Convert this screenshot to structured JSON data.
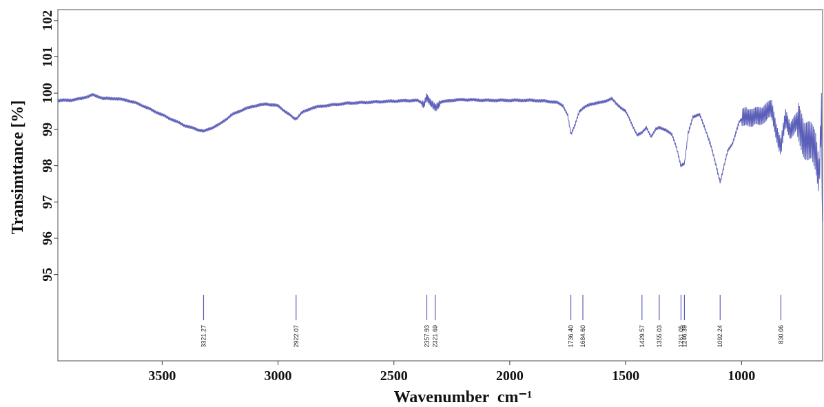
{
  "chart_data": {
    "type": "line",
    "title": "",
    "xlabel": "Wavenumber  cm⁻¹",
    "ylabel": "Transimttance [%]",
    "xlim": [
      3950,
      650
    ],
    "x_reversed": true,
    "ylim": [
      94.5,
      102.3
    ],
    "x_ticks": [
      3500,
      3000,
      2500,
      2000,
      1500,
      1000
    ],
    "y_ticks": [
      95,
      96,
      97,
      98,
      99,
      100,
      101,
      102
    ],
    "grid": false,
    "legend": "none",
    "series_color": "#5b5fb8",
    "series": [
      {
        "x": [
          3950,
          3900,
          3850,
          3800,
          3750,
          3700,
          3650,
          3600,
          3550,
          3500,
          3450,
          3400,
          3350,
          3320,
          3300,
          3250,
          3200,
          3150,
          3100,
          3050,
          3000,
          2960,
          2930,
          2920,
          2900,
          2850,
          2800,
          2700,
          2600,
          2500,
          2400,
          2370,
          2360,
          2340,
          2320,
          2300,
          2250,
          2200,
          2100,
          2000,
          1900,
          1850,
          1800,
          1770,
          1750,
          1736,
          1720,
          1700,
          1680,
          1650,
          1600,
          1560,
          1540,
          1500,
          1470,
          1450,
          1430,
          1410,
          1390,
          1370,
          1355,
          1330,
          1300,
          1280,
          1262,
          1246,
          1230,
          1210,
          1180,
          1150,
          1130,
          1110,
          1092,
          1075,
          1060,
          1040,
          1010,
          980,
          950,
          900,
          870,
          840,
          830,
          810,
          790,
          760,
          730,
          700,
          680,
          665,
          655,
          650
        ],
        "y": [
          99.8,
          99.8,
          99.85,
          99.95,
          99.85,
          99.85,
          99.8,
          99.7,
          99.55,
          99.4,
          99.25,
          99.1,
          99.0,
          98.95,
          99.0,
          99.15,
          99.4,
          99.55,
          99.65,
          99.7,
          99.65,
          99.45,
          99.3,
          99.3,
          99.45,
          99.6,
          99.65,
          99.72,
          99.75,
          99.78,
          99.8,
          99.7,
          99.9,
          99.7,
          99.6,
          99.75,
          99.8,
          99.82,
          99.8,
          99.8,
          99.8,
          99.78,
          99.75,
          99.65,
          99.4,
          98.85,
          99.1,
          99.5,
          99.6,
          99.7,
          99.75,
          99.85,
          99.7,
          99.5,
          99.1,
          98.85,
          98.9,
          99.05,
          98.8,
          99.0,
          99.05,
          99.0,
          98.85,
          98.5,
          98.0,
          98.05,
          98.9,
          99.35,
          99.4,
          98.9,
          98.5,
          98.0,
          97.55,
          98.0,
          98.4,
          98.6,
          99.2,
          99.4,
          99.3,
          99.45,
          99.55,
          98.7,
          98.5,
          99.3,
          99.0,
          99.2,
          98.8,
          98.6,
          98.4,
          97.8,
          99.5,
          95.9
        ]
      }
    ],
    "peak_labels": [
      {
        "x": 3321.27,
        "label": "3321.27"
      },
      {
        "x": 2922.07,
        "label": "2922.07"
      },
      {
        "x": 2357.93,
        "label": "2357.93"
      },
      {
        "x": 2321.69,
        "label": "2321.69"
      },
      {
        "x": 1736.4,
        "label": "1736.40"
      },
      {
        "x": 1684.6,
        "label": "1684.60"
      },
      {
        "x": 1429.57,
        "label": "1429.57"
      },
      {
        "x": 1355.03,
        "label": "1355.03"
      },
      {
        "x": 1261.05,
        "label": "1261.05"
      },
      {
        "x": 1246.39,
        "label": "1246.39"
      },
      {
        "x": 1092.24,
        "label": "1092.24"
      },
      {
        "x": 830.06,
        "label": "830.06"
      }
    ]
  }
}
